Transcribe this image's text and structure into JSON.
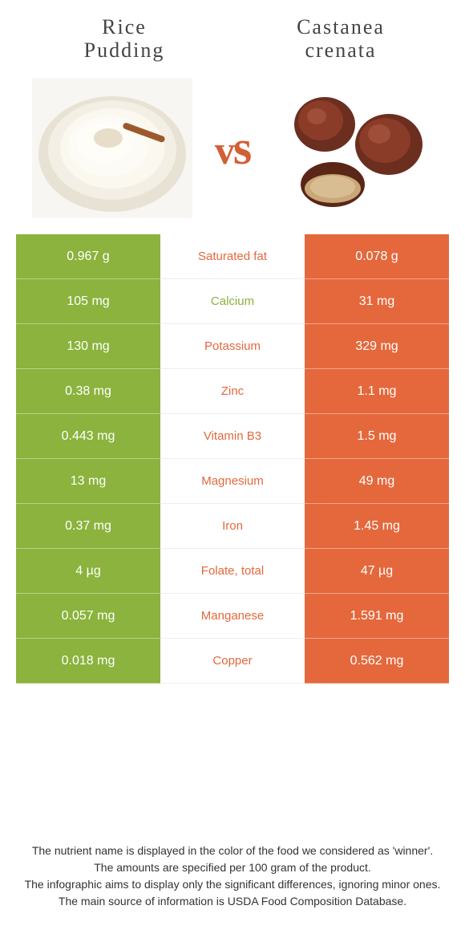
{
  "titles": {
    "left_line1": "Rice",
    "left_line2": "Pudding",
    "right_line1": "Castanea",
    "right_line2": "crenata"
  },
  "vs_text": "vs",
  "colors": {
    "left_bg": "#8bb33d",
    "right_bg": "#e4683c",
    "left_text": "#8bb33d",
    "right_text": "#e4683c"
  },
  "rows": [
    {
      "left": "0.967 g",
      "label": "Saturated fat",
      "right": "0.078 g",
      "winner": "right"
    },
    {
      "left": "105 mg",
      "label": "Calcium",
      "right": "31 mg",
      "winner": "left"
    },
    {
      "left": "130 mg",
      "label": "Potassium",
      "right": "329 mg",
      "winner": "right"
    },
    {
      "left": "0.38 mg",
      "label": "Zinc",
      "right": "1.1 mg",
      "winner": "right"
    },
    {
      "left": "0.443 mg",
      "label": "Vitamin B3",
      "right": "1.5 mg",
      "winner": "right"
    },
    {
      "left": "13 mg",
      "label": "Magnesium",
      "right": "49 mg",
      "winner": "right"
    },
    {
      "left": "0.37 mg",
      "label": "Iron",
      "right": "1.45 mg",
      "winner": "right"
    },
    {
      "left": "4 µg",
      "label": "Folate, total",
      "right": "47 µg",
      "winner": "right"
    },
    {
      "left": "0.057 mg",
      "label": "Manganese",
      "right": "1.591 mg",
      "winner": "right"
    },
    {
      "left": "0.018 mg",
      "label": "Copper",
      "right": "0.562 mg",
      "winner": "right"
    }
  ],
  "footnotes": {
    "line1": "The nutrient name is displayed in the color of the food we considered as 'winner'.",
    "line2": "The amounts are specified per 100 gram of the product.",
    "line3": "The infographic aims to display only the significant differences, ignoring minor ones.",
    "line4": "The main source of information is USDA Food Composition Database."
  }
}
